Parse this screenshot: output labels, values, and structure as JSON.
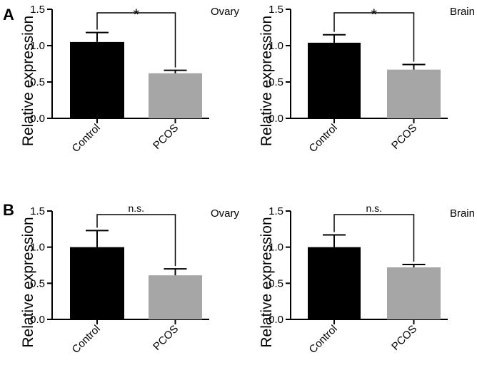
{
  "figure": {
    "panel_labels": [
      "A",
      "B"
    ]
  },
  "colors": {
    "control": "#000000",
    "pcos": "#a6a6a6",
    "axis": "#000000"
  },
  "chart_data": [
    {
      "type": "bar",
      "panel": "A",
      "title": "Ovary",
      "categories": [
        "Control",
        "PCOS"
      ],
      "values": [
        1.05,
        0.62
      ],
      "errors": [
        0.13,
        0.04
      ],
      "ylabel": "Relative expression",
      "yticks": [
        "0.0",
        "0.5",
        "1.0",
        "1.5"
      ],
      "ylim": [
        0,
        1.5
      ],
      "significance": "*"
    },
    {
      "type": "bar",
      "panel": "A",
      "title": "Brain",
      "categories": [
        "Control",
        "PCOS"
      ],
      "values": [
        1.04,
        0.67
      ],
      "errors": [
        0.11,
        0.07
      ],
      "ylabel": "Relative expression",
      "yticks": [
        "0.0",
        "0.5",
        "1.0",
        "1.5"
      ],
      "ylim": [
        0,
        1.5
      ],
      "significance": "*"
    },
    {
      "type": "bar",
      "panel": "B",
      "title": "Ovary",
      "categories": [
        "Control",
        "PCOS"
      ],
      "values": [
        1.0,
        0.61
      ],
      "errors": [
        0.23,
        0.09
      ],
      "ylabel": "Relative expression",
      "yticks": [
        "0.0",
        "0.5",
        "1.0",
        "1.5"
      ],
      "ylim": [
        0,
        1.5
      ],
      "significance": "n.s."
    },
    {
      "type": "bar",
      "panel": "B",
      "title": "Brain",
      "categories": [
        "Control",
        "PCOS"
      ],
      "values": [
        1.0,
        0.72
      ],
      "errors": [
        0.17,
        0.04
      ],
      "ylabel": "Relative expression",
      "yticks": [
        "0.0",
        "0.5",
        "1.0",
        "1.5"
      ],
      "ylim": [
        0,
        1.5
      ],
      "significance": "n.s."
    }
  ]
}
